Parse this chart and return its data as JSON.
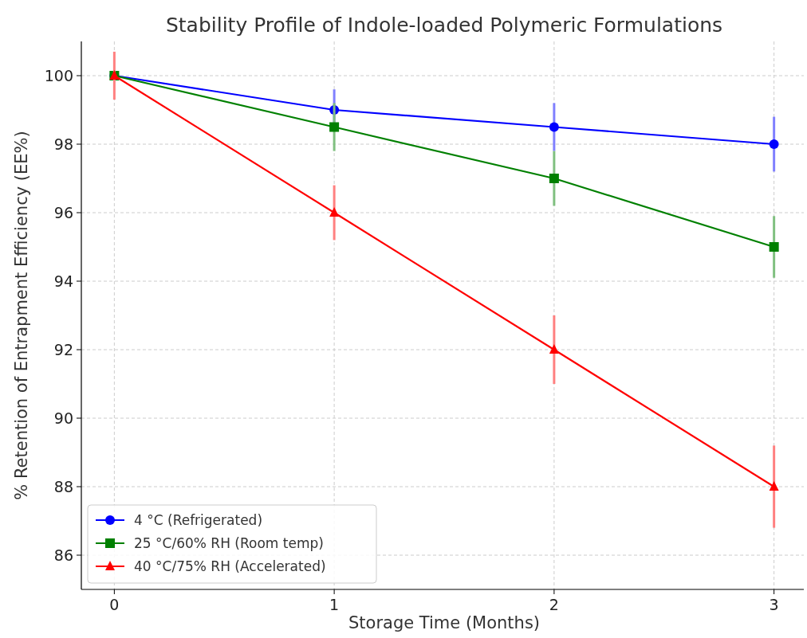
{
  "chart_data": {
    "type": "line",
    "title": "Stability Profile of Indole-loaded Polymeric Formulations",
    "xlabel": "Storage Time (Months)",
    "ylabel": "% Retention of Entrapment Efficiency (EE%)",
    "x": [
      0,
      1,
      2,
      3
    ],
    "series": [
      {
        "name": "4 °C (Refrigerated)",
        "color": "#0000ff",
        "marker": "circle",
        "values": [
          100,
          99,
          98.5,
          98
        ],
        "errors": [
          null,
          0.6,
          0.7,
          0.8
        ]
      },
      {
        "name": "25 °C/60% RH (Room temp)",
        "color": "#008000",
        "marker": "square",
        "values": [
          100,
          98.5,
          97,
          95
        ],
        "errors": [
          null,
          0.7,
          0.8,
          0.9
        ]
      },
      {
        "name": "40 °C/75% RH (Accelerated)",
        "color": "#ff0000",
        "marker": "triangle",
        "values": [
          100,
          96,
          92,
          88
        ],
        "errors": [
          0.7,
          0.8,
          1.0,
          1.2
        ]
      }
    ],
    "xlim": [
      -0.15,
      3.15
    ],
    "xticks": [
      0,
      1,
      2,
      3
    ],
    "ylim": [
      85,
      101
    ],
    "yticks": [
      86,
      88,
      90,
      92,
      94,
      96,
      98,
      100
    ],
    "grid": true,
    "legend": "bottom left",
    "line_style": "solid"
  }
}
